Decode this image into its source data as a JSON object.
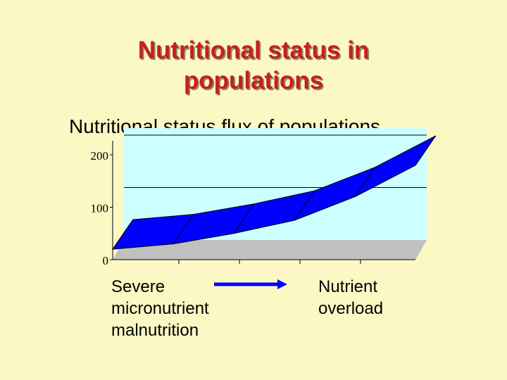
{
  "slide": {
    "title_lines": [
      "Nutritional status in",
      "populations"
    ],
    "subtitle": "Nutritional status flux of populations",
    "caption_left_lines": [
      "Severe",
      "micronutrient",
      "malnutrition"
    ],
    "caption_right_lines": [
      "Nutrient",
      "overload"
    ]
  },
  "colors": {
    "background": "#fbf8c4",
    "title": "#c81e1e",
    "plot_back_wall": "#ccffff",
    "plot_floor": "#c0c0c0",
    "band": "#0000ff",
    "arrow": "#0000ff"
  },
  "chart_data": {
    "type": "area",
    "style": "3d-ribbon",
    "title": "",
    "xlabel": "",
    "ylabel": "",
    "ylim": [
      0,
      200
    ],
    "yticks": [
      "0",
      "100",
      "200"
    ],
    "grid": "horizontal",
    "x": [
      0,
      1,
      2,
      3,
      4,
      5
    ],
    "series": [
      {
        "values": [
          20,
          30,
          50,
          75,
          120,
          180
        ]
      }
    ]
  }
}
